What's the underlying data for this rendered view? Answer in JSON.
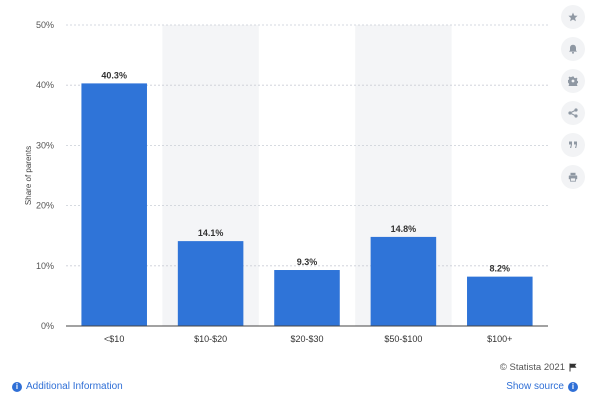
{
  "chart_data": {
    "type": "bar",
    "categories": [
      "<$10",
      "$10-$20",
      "$20-$30",
      "$50-$100",
      "$100+"
    ],
    "values": [
      40.3,
      14.1,
      9.3,
      14.8,
      8.2
    ],
    "value_labels": [
      "40.3%",
      "14.1%",
      "9.3%",
      "14.8%",
      "8.2%"
    ],
    "ylabel": "Share of parents",
    "xlabel": "",
    "ylim": [
      0,
      50
    ],
    "yticks": [
      "0%",
      "10%",
      "20%",
      "30%",
      "40%",
      "50%"
    ],
    "grid": true,
    "bar_color": "#2f74d8",
    "shaded_band_color": "#f4f5f7"
  },
  "sidebar": {
    "icons": [
      "star-icon",
      "bell-icon",
      "gear-icon",
      "share-icon",
      "quote-icon",
      "print-icon"
    ]
  },
  "footer": {
    "credit": "© Statista 2021",
    "additional_info": "Additional Information",
    "show_source": "Show source"
  }
}
